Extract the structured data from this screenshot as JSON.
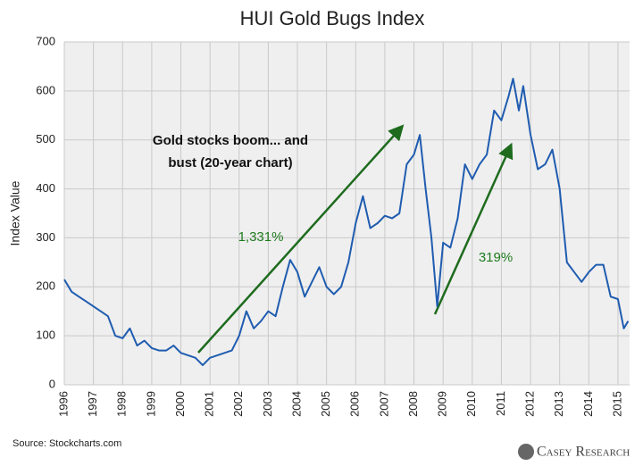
{
  "chart_data": {
    "type": "line",
    "title": "HUI Gold Bugs Index",
    "y_label": "Index Value",
    "annotations": [
      "Gold stocks boom... and",
      "bust (20-year chart)",
      "1,331%",
      "319%"
    ],
    "source": "Source: Stockcharts.com",
    "logo": "Casey Research",
    "color": "#1f5cb0",
    "grid": true,
    "xlim": [
      1996,
      2015.4
    ],
    "xticks": [
      1996,
      1997,
      1998,
      1999,
      2000,
      2001,
      2002,
      2003,
      2004,
      2005,
      2006,
      2007,
      2008,
      2009,
      2010,
      2011,
      2012,
      2013,
      2014,
      2015
    ],
    "ylim": [
      0,
      700
    ],
    "yticks": [
      0,
      100,
      200,
      300,
      400,
      500,
      600,
      700
    ],
    "x": [
      1996.0,
      1996.25,
      1996.5,
      1996.75,
      1997.0,
      1997.25,
      1997.5,
      1997.75,
      1998.0,
      1998.25,
      1998.5,
      1998.75,
      1999.0,
      1999.25,
      1999.5,
      1999.75,
      2000.0,
      2000.25,
      2000.5,
      2000.75,
      2001.0,
      2001.25,
      2001.5,
      2001.75,
      2002.0,
      2002.25,
      2002.5,
      2002.75,
      2003.0,
      2003.25,
      2003.5,
      2003.75,
      2004.0,
      2004.25,
      2004.5,
      2004.75,
      2005.0,
      2005.25,
      2005.5,
      2005.75,
      2006.0,
      2006.25,
      2006.5,
      2006.75,
      2007.0,
      2007.25,
      2007.5,
      2007.75,
      2008.0,
      2008.2,
      2008.4,
      2008.6,
      2008.8,
      2009.0,
      2009.25,
      2009.5,
      2009.75,
      2010.0,
      2010.25,
      2010.5,
      2010.75,
      2011.0,
      2011.25,
      2011.4,
      2011.6,
      2011.75,
      2012.0,
      2012.25,
      2012.5,
      2012.75,
      2013.0,
      2013.25,
      2013.5,
      2013.75,
      2014.0,
      2014.25,
      2014.5,
      2014.75,
      2015.0,
      2015.2,
      2015.35
    ],
    "values": [
      215,
      190,
      180,
      170,
      160,
      150,
      140,
      100,
      95,
      115,
      80,
      90,
      75,
      70,
      70,
      80,
      65,
      60,
      55,
      40,
      55,
      60,
      65,
      70,
      100,
      150,
      115,
      130,
      150,
      140,
      200,
      255,
      230,
      180,
      210,
      240,
      200,
      185,
      200,
      250,
      330,
      385,
      320,
      330,
      345,
      340,
      350,
      450,
      470,
      510,
      400,
      300,
      160,
      290,
      280,
      340,
      450,
      420,
      450,
      470,
      560,
      540,
      590,
      625,
      560,
      610,
      510,
      440,
      450,
      480,
      400,
      250,
      230,
      210,
      230,
      245,
      245,
      180,
      175,
      115,
      130
    ]
  }
}
